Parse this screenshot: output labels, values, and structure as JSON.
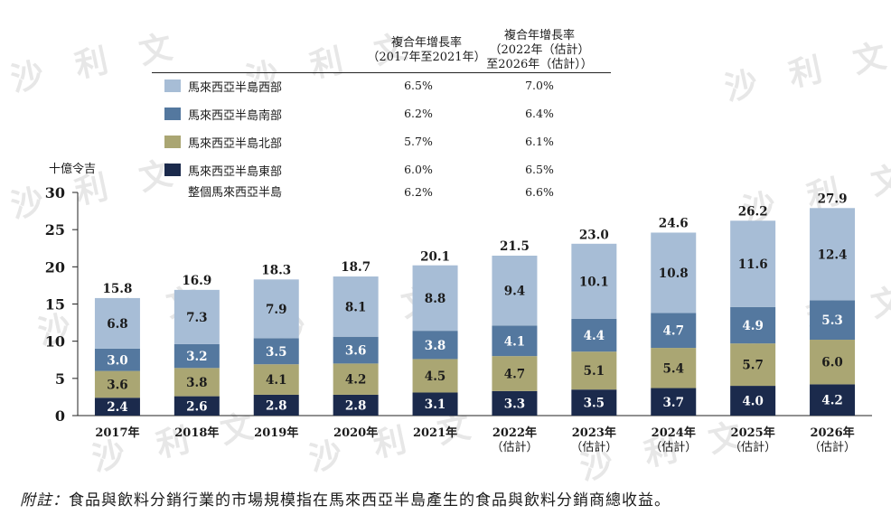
{
  "watermark": "沙 利 文",
  "legend": {
    "col1_header": [
      "複合年增長率",
      "（2017年至2021年）"
    ],
    "col2_header": [
      "複合年增長率",
      "（2022年（估計）",
      "至2026年（估計））"
    ],
    "rows": [
      {
        "label": "馬來西亞半島西部",
        "color": "#a7bdd6",
        "cagr1": "6.5%",
        "cagr2": "7.0%"
      },
      {
        "label": "馬來西亞半島南部",
        "color": "#54789f",
        "cagr1": "6.2%",
        "cagr2": "6.4%"
      },
      {
        "label": "馬來西亞半島北部",
        "color": "#aaa673",
        "cagr1": "5.7%",
        "cagr2": "6.1%"
      },
      {
        "label": "馬來西亞半島東部",
        "color": "#1b2a4c",
        "cagr1": "6.0%",
        "cagr2": "6.5%"
      }
    ],
    "total": {
      "label": "整個馬來西亞半島",
      "cagr1": "6.2%",
      "cagr2": "6.6%"
    }
  },
  "chart_data": {
    "type": "bar",
    "stacked": true,
    "ylabel": "十億令吉",
    "ylim": [
      0,
      30
    ],
    "yticks": [
      0,
      5,
      10,
      15,
      20,
      25,
      30
    ],
    "categories": [
      [
        "2017年"
      ],
      [
        "2018年"
      ],
      [
        "2019年"
      ],
      [
        "2020年"
      ],
      [
        "2021年"
      ],
      [
        "2022年",
        "（估計）"
      ],
      [
        "2023年",
        "（估計）"
      ],
      [
        "2024年",
        "（估計）"
      ],
      [
        "2025年",
        "（估計）"
      ],
      [
        "2026年",
        "（估計）"
      ]
    ],
    "series": [
      {
        "name": "馬來西亞半島東部",
        "color": "#1b2a4c",
        "label_color": "#ffffff",
        "values": [
          2.4,
          2.6,
          2.8,
          2.8,
          3.1,
          3.3,
          3.5,
          3.7,
          4.0,
          4.2
        ]
      },
      {
        "name": "馬來西亞半島北部",
        "color": "#aaa673",
        "label_color": "#1b1b1b",
        "values": [
          3.6,
          3.8,
          4.1,
          4.2,
          4.5,
          4.7,
          5.1,
          5.4,
          5.7,
          6.0
        ]
      },
      {
        "name": "馬來西亞半島南部",
        "color": "#54789f",
        "label_color": "#ffffff",
        "values": [
          3.0,
          3.2,
          3.5,
          3.6,
          3.8,
          4.1,
          4.4,
          4.7,
          4.9,
          5.3
        ]
      },
      {
        "name": "馬來西亞半島西部",
        "color": "#a7bdd6",
        "label_color": "#1b1b1b",
        "values": [
          6.8,
          7.3,
          7.9,
          8.1,
          8.8,
          9.4,
          10.1,
          10.8,
          11.6,
          12.4
        ]
      }
    ],
    "totals": [
      15.8,
      16.9,
      18.3,
      18.7,
      20.1,
      21.5,
      23.0,
      24.6,
      26.2,
      27.9
    ]
  },
  "note": {
    "prefix": "附註：",
    "text": "食品與飲料分銷行業的市場規模指在馬來西亞半島產生的食品與飲料分銷商總收益。"
  }
}
